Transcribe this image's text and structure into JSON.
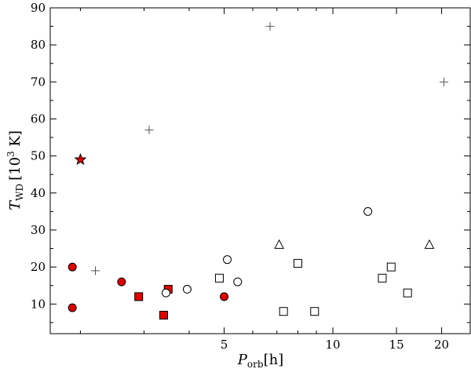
{
  "chart_data": {
    "type": "scatter",
    "xscale": "log",
    "xlim": [
      1.65,
      24
    ],
    "ylim": [
      2,
      90
    ],
    "xlabel": {
      "main": "P",
      "sub": "orb",
      "unit": "[h]"
    },
    "ylabel": {
      "main": "T",
      "sub": "WD",
      "pre": "[10",
      "sup": "3",
      "post": " K]"
    },
    "xticks": [
      {
        "value": 5,
        "label": "5"
      },
      {
        "value": 10,
        "label": "10"
      },
      {
        "value": 15,
        "label": "15"
      },
      {
        "value": 20,
        "label": "20"
      }
    ],
    "yticks": [
      10,
      20,
      30,
      40,
      50,
      60,
      70,
      80,
      90
    ],
    "grid": false,
    "colors": {
      "red": "#e00000",
      "black": "#000000",
      "white": "#ffffff",
      "gray": "#555555"
    },
    "series": [
      {
        "marker": "circle",
        "style": "red-filled",
        "points": [
          [
            1.9,
            20
          ],
          [
            1.9,
            9
          ],
          [
            2.6,
            16
          ],
          [
            5.0,
            12
          ]
        ]
      },
      {
        "marker": "square",
        "style": "red-filled",
        "points": [
          [
            2.9,
            12
          ],
          [
            3.4,
            7
          ],
          [
            3.5,
            14
          ]
        ]
      },
      {
        "marker": "star",
        "style": "red-filled",
        "points": [
          [
            2.0,
            49
          ]
        ]
      },
      {
        "marker": "circle",
        "style": "open",
        "points": [
          [
            3.45,
            13
          ],
          [
            3.95,
            14
          ],
          [
            5.1,
            22
          ],
          [
            5.45,
            16
          ],
          [
            12.5,
            35
          ]
        ]
      },
      {
        "marker": "square",
        "style": "open",
        "points": [
          [
            4.85,
            17
          ],
          [
            7.3,
            8
          ],
          [
            8.0,
            21
          ],
          [
            8.9,
            8
          ],
          [
            13.7,
            17
          ],
          [
            14.5,
            20
          ],
          [
            16.1,
            13
          ]
        ]
      },
      {
        "marker": "triangle",
        "style": "open",
        "points": [
          [
            7.1,
            26
          ],
          [
            18.5,
            26
          ]
        ]
      },
      {
        "marker": "plus",
        "style": "gray",
        "points": [
          [
            2.2,
            19
          ],
          [
            3.1,
            57
          ],
          [
            6.7,
            85
          ],
          [
            20.3,
            70
          ]
        ]
      }
    ]
  }
}
